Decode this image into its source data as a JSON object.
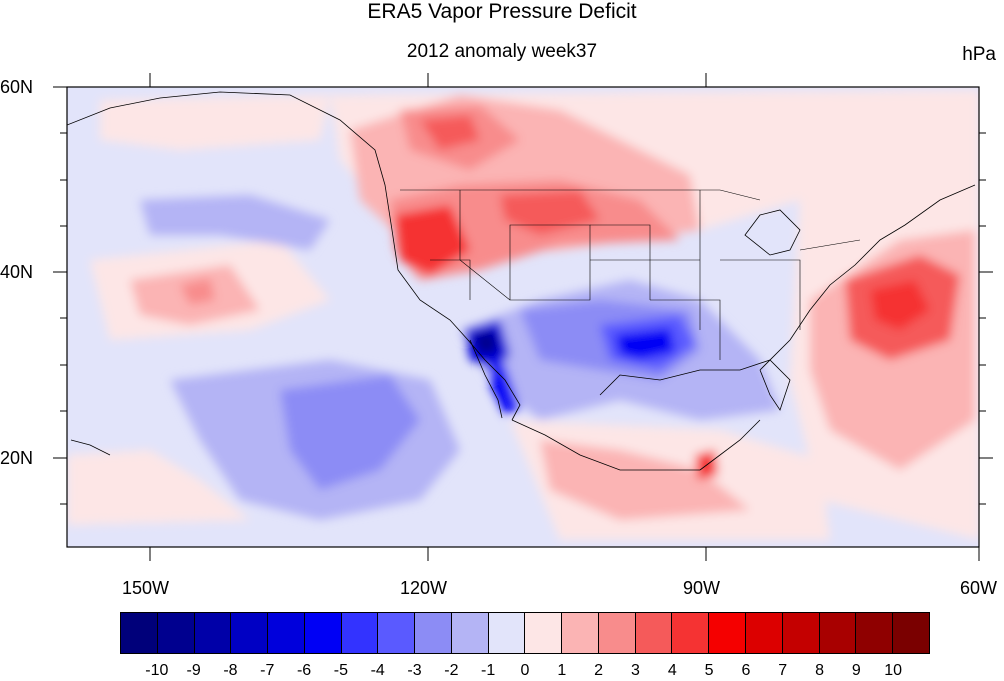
{
  "title": "ERA5 Vapor Pressure Deficit",
  "subtitle": "2012 anomaly week37",
  "units": "hPa",
  "axes": {
    "lat_labels": [
      "60N",
      "40N",
      "20N"
    ],
    "lon_labels": [
      "150W",
      "120W",
      "90W",
      "60W"
    ]
  },
  "colorbar": {
    "labels": [
      "-10",
      "-9",
      "-8",
      "-7",
      "-6",
      "-5",
      "-4",
      "-3",
      "-2",
      "-1",
      "0",
      "1",
      "2",
      "3",
      "4",
      "5",
      "6",
      "7",
      "8",
      "9",
      "10"
    ],
    "colors": [
      "#00007a",
      "#00008f",
      "#0000a8",
      "#0000c4",
      "#0000dc",
      "#0000f5",
      "#3333ff",
      "#5a5aff",
      "#8c8cf5",
      "#b4b4f5",
      "#e2e4fa",
      "#fde6e6",
      "#fbb4b4",
      "#f88c8c",
      "#f55a5a",
      "#f53333",
      "#f50000",
      "#dc0000",
      "#c40000",
      "#a80000",
      "#8f0000",
      "#7a0000"
    ]
  }
}
